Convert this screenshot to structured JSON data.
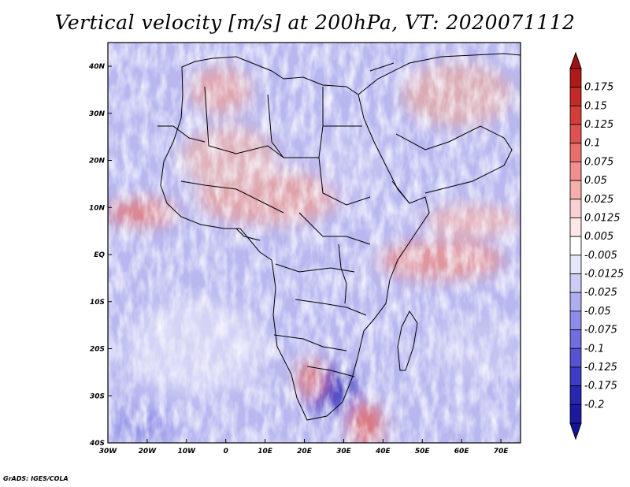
{
  "title": "Vertical velocity [m/s] at 200hPa, VT: 2020071112",
  "credit": "GrADS: IGES/COLA",
  "map": {
    "lon_range": [
      -30,
      75
    ],
    "lat_range": [
      -40,
      45
    ],
    "lat_ticks": [
      "40N",
      "30N",
      "20N",
      "10N",
      "EQ",
      "10S",
      "20S",
      "30S",
      "40S"
    ],
    "lon_ticks": [
      "30W",
      "20W",
      "10W",
      "0",
      "10E",
      "20E",
      "30E",
      "40E",
      "50E",
      "60E",
      "70E"
    ]
  },
  "colorbar": {
    "labels": [
      "0.175",
      "0.15",
      "0.125",
      "0.1",
      "0.075",
      "0.05",
      "0.025",
      "0.0125",
      "0.005",
      "-0.005",
      "-0.0125",
      "-0.025",
      "-0.05",
      "-0.075",
      "-0.1",
      "-0.125",
      "-0.175",
      "-0.2"
    ],
    "colors": [
      "#b01919",
      "#c42a2a",
      "#d43c3c",
      "#e05252",
      "#ea6e6e",
      "#f28e8e",
      "#f6aeae",
      "#fad0d0",
      "#fde8e8",
      "#ffffff",
      "#e6e6fb",
      "#ccccf5",
      "#adadef",
      "#8d8de8",
      "#6f6fdf",
      "#5454d3",
      "#3c3cc5",
      "#2626b0",
      "#1a1aa0"
    ],
    "top_arrow_color": "#a41010",
    "bottom_arrow_color": "#14149a"
  }
}
